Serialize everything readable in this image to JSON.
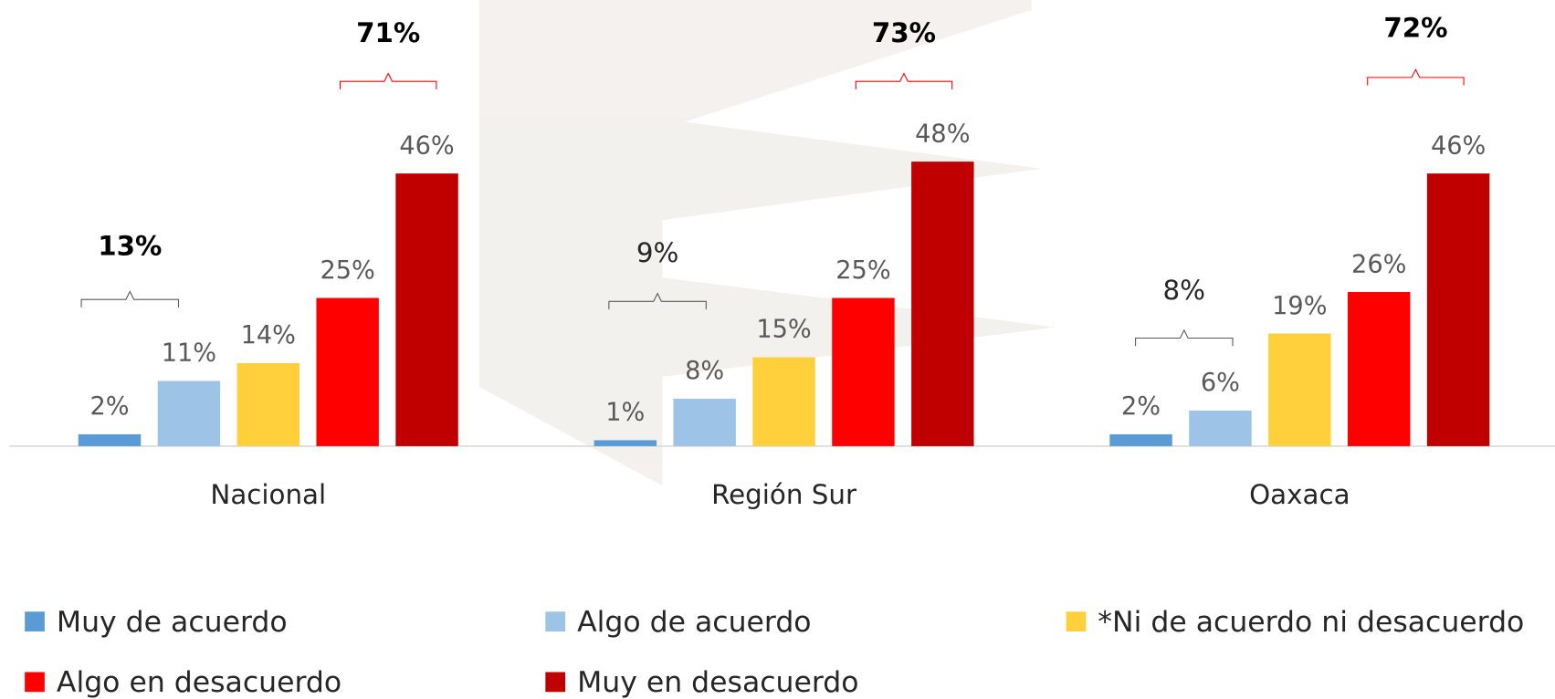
{
  "chart_data": {
    "type": "bar",
    "categories": [
      "Nacional",
      "Región Sur",
      "Oaxaca"
    ],
    "series": [
      {
        "name": "Muy de acuerdo",
        "color": "#5b9bd5",
        "values": [
          2,
          1,
          2
        ],
        "value_labels": [
          "2%",
          "1%",
          "2%"
        ]
      },
      {
        "name": "Algo de acuerdo",
        "color": "#9dc3e6",
        "values": [
          11,
          8,
          6
        ],
        "value_labels": [
          "11%",
          "8%",
          "6%"
        ]
      },
      {
        "name": "*Ni de acuerdo ni desacuerdo",
        "color": "#ffd03c",
        "values": [
          14,
          15,
          19
        ],
        "value_labels": [
          "14%",
          "15%",
          "19%"
        ]
      },
      {
        "name": "Algo en desacuerdo",
        "color": "#ff0000",
        "values": [
          25,
          25,
          26
        ],
        "value_labels": [
          "25%",
          "25%",
          "26%"
        ]
      },
      {
        "name": "Muy en desacuerdo",
        "color": "#c00000",
        "values": [
          46,
          48,
          46
        ],
        "value_labels": [
          "46%",
          "48%",
          "46%"
        ]
      }
    ],
    "annotations": [
      {
        "text": "13%",
        "bold": true,
        "color": "#595959"
      },
      {
        "text": "71%",
        "bold": true,
        "color": "#ff0000"
      },
      {
        "text": "9%",
        "bold": false,
        "color": "#595959"
      },
      {
        "text": "73%",
        "bold": true,
        "color": "#ff0000"
      },
      {
        "text": "8%",
        "bold": false,
        "color": "#595959"
      },
      {
        "text": "72%",
        "bold": true,
        "color": "#ff0000"
      }
    ]
  }
}
